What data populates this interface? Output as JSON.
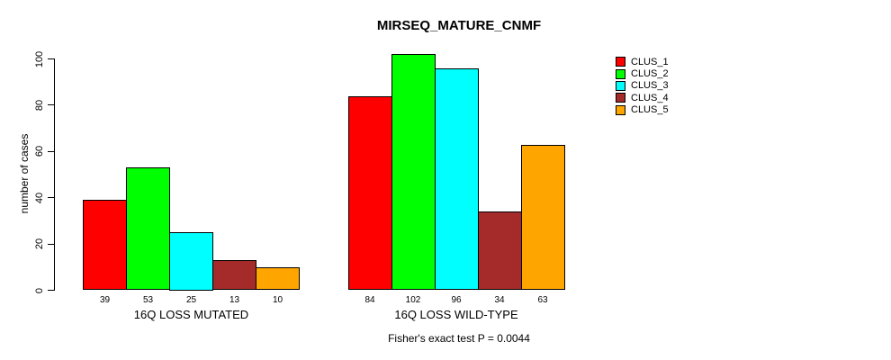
{
  "chart_data": {
    "type": "bar",
    "title": "MIRSEQ_MATURE_CNMF",
    "ylabel": "number of cases",
    "footer": "Fisher's exact test P = 0.0044",
    "ylim": [
      0,
      100
    ],
    "yticks": [
      0,
      20,
      40,
      60,
      80,
      100
    ],
    "grid": false,
    "legend_position": "right",
    "bar_value_labels": true,
    "categories": [
      "16Q LOSS MUTATED",
      "16Q LOSS WILD-TYPE"
    ],
    "series": [
      {
        "name": "CLUS_1",
        "color": "#FF0000",
        "values": [
          39,
          84
        ]
      },
      {
        "name": "CLUS_2",
        "color": "#00FF00",
        "values": [
          53,
          102
        ]
      },
      {
        "name": "CLUS_3",
        "color": "#00FFFF",
        "values": [
          25,
          96
        ]
      },
      {
        "name": "CLUS_4",
        "color": "#A52A2A",
        "values": [
          13,
          34
        ]
      },
      {
        "name": "CLUS_5",
        "color": "#FFA500",
        "values": [
          10,
          63
        ]
      }
    ]
  }
}
